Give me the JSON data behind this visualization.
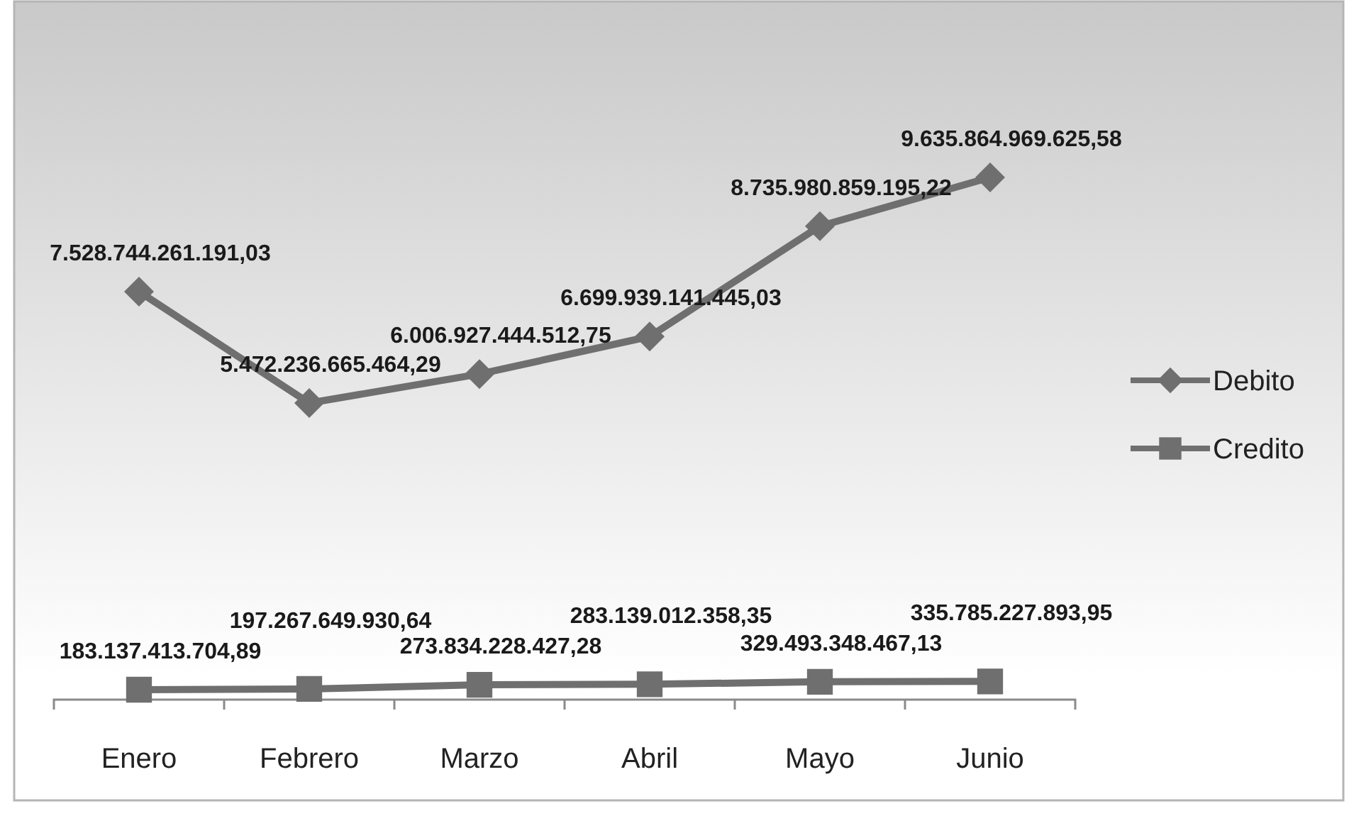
{
  "chart_data": {
    "type": "line",
    "categories": [
      "Enero",
      "Febrero",
      "Marzo",
      "Abril",
      "Mayo",
      "Junio"
    ],
    "series": [
      {
        "name": "Debito",
        "color": "#6f6f6f",
        "marker": "diamond",
        "values": [
          7528744261191.03,
          5472236665464.29,
          6006927444512.75,
          6699939141445.03,
          8735980859195.22,
          9635864969625.58
        ],
        "value_labels": [
          "7.528.744.261.191,03",
          "5.472.236.665.464,29",
          "6.006.927.444.512,75",
          "6.699.939.141.445,03",
          "8.735.980.859.195,22",
          "9.635.864.969.625,58"
        ]
      },
      {
        "name": "Credito",
        "color": "#6f6f6f",
        "marker": "square",
        "values": [
          183137413704.89,
          197267649930.64,
          273834228427.28,
          283139012358.35,
          329493348467.13,
          335785227893.95
        ],
        "value_labels": [
          "183.137.413.704,89",
          "197.267.649.930,64",
          "273.834.228.427,28",
          "283.139.012.358,35",
          "329.493.348.467,13",
          "335.785.227.893,95"
        ]
      }
    ],
    "legend": "right"
  }
}
